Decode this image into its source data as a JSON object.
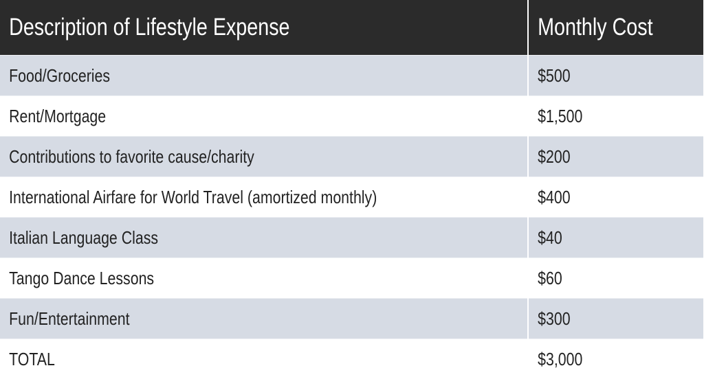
{
  "table": {
    "header": [
      "Description of Lifestyle Expense",
      "Monthly Cost"
    ],
    "rows": [
      [
        "Food/Groceries",
        "$500"
      ],
      [
        "Rent/Mortgage",
        "$1,500"
      ],
      [
        "Contributions to favorite cause/charity",
        "$200"
      ],
      [
        "International Airfare for World Travel (amortized monthly)",
        "$400"
      ],
      [
        "Italian Language Class",
        "$40"
      ],
      [
        "Tango Dance Lessons",
        "$60"
      ],
      [
        "Fun/Entertainment",
        "$300"
      ],
      [
        "TOTAL",
        "$3,000"
      ]
    ]
  }
}
